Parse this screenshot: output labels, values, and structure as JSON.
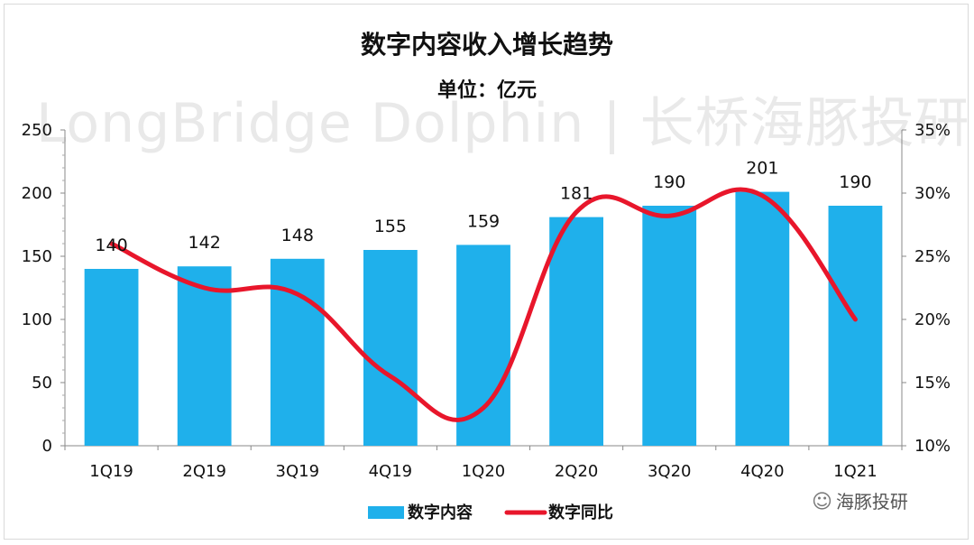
{
  "title": "数字内容收入增长趋势",
  "subtitle": "单位：亿元",
  "watermark": "LongBridge Dolphin | 长桥海豚投研",
  "brand": {
    "text": "海豚投研",
    "icon": "wechat-icon"
  },
  "chart_data": {
    "type": "bar",
    "categories": [
      "1Q19",
      "2Q19",
      "3Q19",
      "4Q19",
      "1Q20",
      "2Q20",
      "3Q20",
      "4Q20",
      "1Q21"
    ],
    "series": [
      {
        "name": "数字内容",
        "type": "bar",
        "axis": "left",
        "color": "#1fb0eb",
        "values": [
          140,
          142,
          148,
          155,
          159,
          181,
          190,
          201,
          190
        ]
      },
      {
        "name": "数字同比",
        "type": "line",
        "axis": "right",
        "color": "#e8162b",
        "values": [
          26,
          22.5,
          22,
          15.5,
          13,
          28.5,
          28.2,
          29.8,
          20
        ]
      }
    ],
    "ylim": [
      0,
      250
    ],
    "yticks": [
      "0",
      "50",
      "100",
      "150",
      "200",
      "250"
    ],
    "y2lim": [
      10,
      35
    ],
    "y2ticks": [
      "10%",
      "15%",
      "20%",
      "25%",
      "30%",
      "35%"
    ],
    "legend": "bottom",
    "grid": false
  }
}
